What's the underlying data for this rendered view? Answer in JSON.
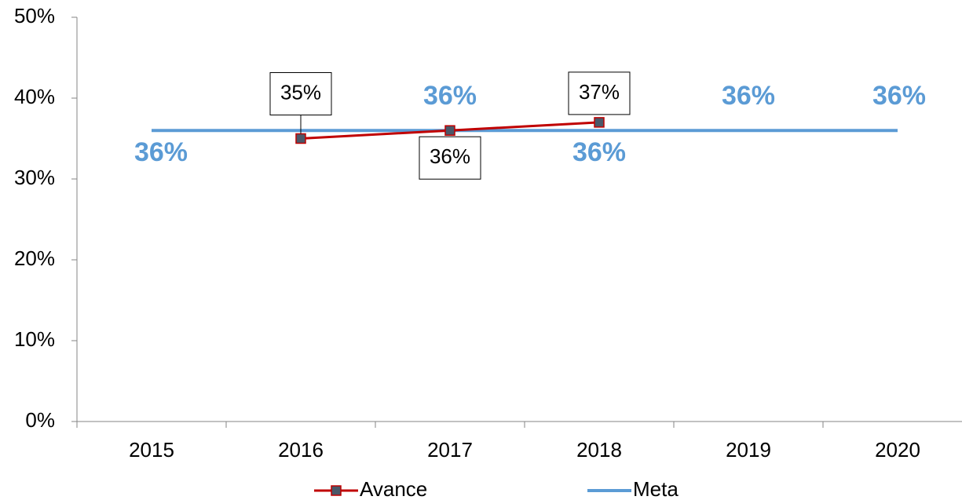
{
  "chart_data": {
    "type": "line",
    "categories": [
      "2015",
      "2016",
      "2017",
      "2018",
      "2019",
      "2020"
    ],
    "series": [
      {
        "name": "Avance",
        "color": "#c00000",
        "marker_color": "#4a5869",
        "values": [
          null,
          35,
          36,
          37,
          null,
          null
        ],
        "value_labels": [
          null,
          "35%",
          "36%",
          "37%",
          null,
          null
        ]
      },
      {
        "name": "Meta",
        "color": "#5b9bd5",
        "values": [
          36,
          36,
          36,
          36,
          36,
          36
        ],
        "value_labels": [
          "36%",
          null,
          "36%",
          "36%",
          "36%",
          "36%"
        ]
      }
    ],
    "ylim": [
      0,
      50
    ],
    "yticks": [
      {
        "value": 0,
        "label": "0%"
      },
      {
        "value": 10,
        "label": "10%"
      },
      {
        "value": 20,
        "label": "20%"
      },
      {
        "value": 30,
        "label": "30%"
      },
      {
        "value": 40,
        "label": "40%"
      },
      {
        "value": 50,
        "label": "50%"
      }
    ],
    "grid": false,
    "legend": "bottom"
  }
}
